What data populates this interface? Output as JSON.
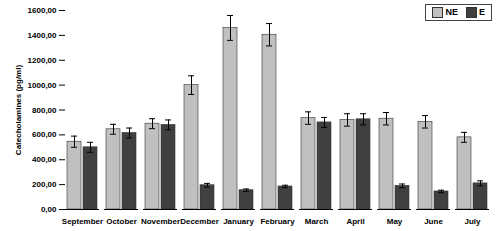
{
  "chart_data": {
    "type": "bar",
    "y_label": "Catecholamines (pg/ml)",
    "categories": [
      "September",
      "October",
      "November",
      "December",
      "January",
      "February",
      "March",
      "April",
      "May",
      "June",
      "July"
    ],
    "series": [
      {
        "name": "NE",
        "color": "#c0c0c0",
        "values": [
          545,
          645,
          690,
          1000,
          1460,
          1405,
          735,
          720,
          730,
          705,
          580
        ],
        "errors": [
          45,
          40,
          40,
          75,
          100,
          90,
          50,
          50,
          50,
          50,
          40
        ]
      },
      {
        "name": "E",
        "color": "#404040",
        "values": [
          500,
          615,
          680,
          195,
          155,
          185,
          700,
          725,
          190,
          145,
          210
        ],
        "errors": [
          40,
          40,
          40,
          15,
          10,
          10,
          40,
          45,
          15,
          10,
          20
        ]
      }
    ],
    "ylim": [
      0,
      1600
    ],
    "yticks": [
      {
        "value": 0,
        "label": "0,00"
      },
      {
        "value": 200,
        "label": "200,00"
      },
      {
        "value": 400,
        "label": "400,00"
      },
      {
        "value": 600,
        "label": "600,00"
      },
      {
        "value": 800,
        "label": "800,00"
      },
      {
        "value": 1000,
        "label": "1000,00"
      },
      {
        "value": 1200,
        "label": "1200,00"
      },
      {
        "value": 1400,
        "label": "1400,00"
      },
      {
        "value": 1600,
        "label": "1600,00"
      }
    ],
    "grid": false,
    "legend": "top-right"
  }
}
